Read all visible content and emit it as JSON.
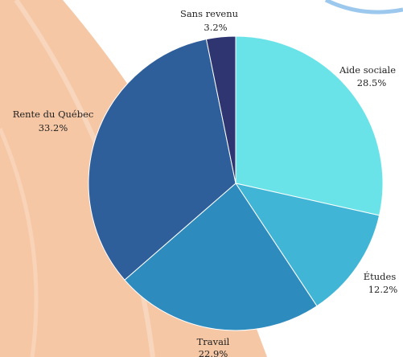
{
  "chart_data": {
    "type": "pie",
    "categories": [
      "Aide sociale",
      "Études",
      "Travail",
      "Rente du Québec",
      "Sans revenu"
    ],
    "values": [
      28.5,
      12.2,
      22.9,
      33.2,
      3.2
    ],
    "value_labels": [
      "28.5%",
      "12.2%",
      "22.9%",
      "33.2%",
      "3.2%"
    ],
    "colors": [
      "#6ae3e8",
      "#40b5d6",
      "#2e8bbd",
      "#2e5f9b",
      "#2e3570"
    ]
  }
}
